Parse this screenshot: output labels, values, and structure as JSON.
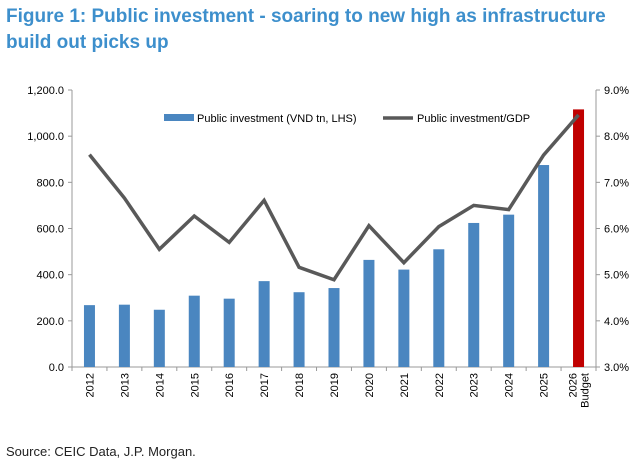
{
  "title": "Figure 1: Public investment - soaring to new high as infrastructure build out picks up",
  "source": "Source: CEIC Data, J.P. Morgan.",
  "chart_data": {
    "type": "bar",
    "categories": [
      "2012",
      "2013",
      "2014",
      "2015",
      "2016",
      "2017",
      "2018",
      "2019",
      "2020",
      "2021",
      "2022",
      "2023",
      "2024",
      "2025",
      "2026 Budget"
    ],
    "series": [
      {
        "name": "Public investment (VND tn, LHS)",
        "type": "bar",
        "axis": "left",
        "color": "#4a86c0",
        "highlight_color": "#c00000",
        "highlight_index": 14,
        "values": [
          268,
          270,
          248,
          309,
          296,
          372,
          324,
          342,
          464,
          422,
          510,
          624,
          660,
          875,
          1116
        ]
      },
      {
        "name": "Public investment/GDP",
        "type": "line",
        "axis": "right",
        "color": "#595959",
        "values": [
          7.6,
          6.66,
          5.55,
          6.27,
          5.7,
          6.61,
          5.16,
          4.89,
          6.06,
          5.26,
          6.04,
          6.5,
          6.41,
          7.59,
          8.46
        ]
      }
    ],
    "left_axis": {
      "ylim": [
        0,
        1200
      ],
      "ticks": [
        "0.0",
        "200.0",
        "400.0",
        "600.0",
        "800.0",
        "1,000.0",
        "1,200.0"
      ]
    },
    "right_axis": {
      "ylim": [
        3,
        9
      ],
      "ticks": [
        "3.0%",
        "4.0%",
        "5.0%",
        "6.0%",
        "7.0%",
        "8.0%",
        "9.0%"
      ]
    },
    "grid": false,
    "legend": "top"
  }
}
